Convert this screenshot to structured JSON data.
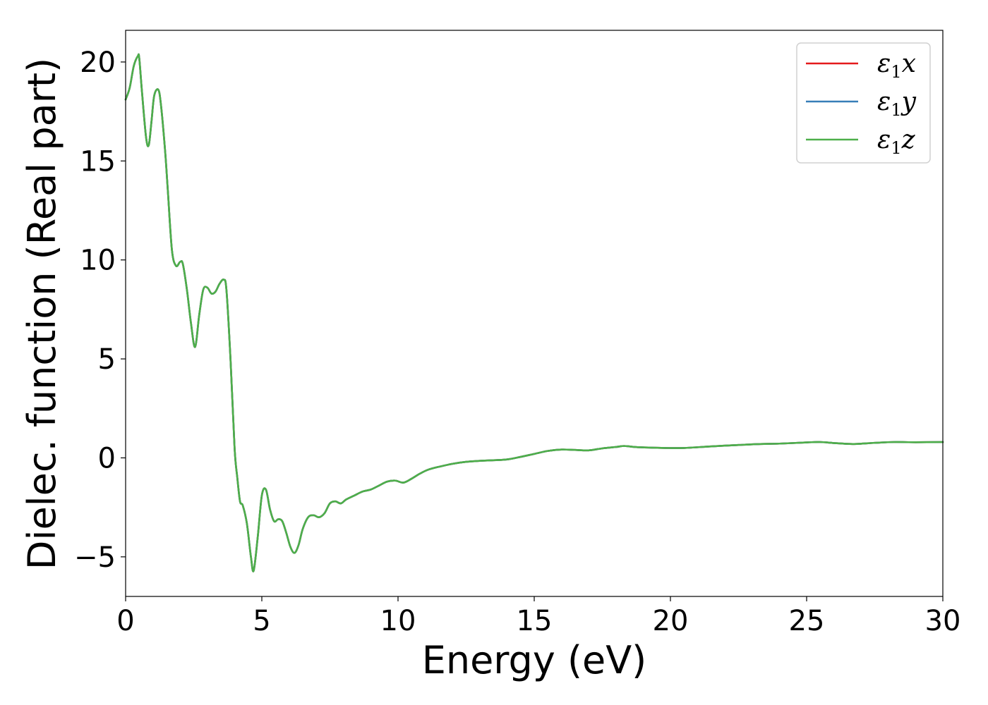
{
  "chart_data": {
    "type": "line",
    "xlabel": "Energy (eV)",
    "ylabel": "Dielec. function (Real part)",
    "xlim": [
      0,
      30
    ],
    "ylim": [
      -7,
      21.6
    ],
    "xticks": [
      0,
      5,
      10,
      15,
      20,
      25,
      30
    ],
    "xtick_labels": [
      "0",
      "5",
      "10",
      "15",
      "20",
      "25",
      "30"
    ],
    "yticks": [
      -5,
      0,
      5,
      10,
      15,
      20
    ],
    "ytick_labels": [
      "−5",
      "0",
      "5",
      "10",
      "15",
      "20"
    ],
    "grid": false,
    "legend_position": "top-right",
    "series": [
      {
        "name": "ε₁x",
        "color": "#e41a1c",
        "x": [
          0,
          0.15,
          0.3,
          0.45,
          0.5,
          0.6,
          0.75,
          0.85,
          0.95,
          1.05,
          1.2,
          1.3,
          1.45,
          1.55,
          1.7,
          1.85,
          2.0,
          2.1,
          2.25,
          2.4,
          2.55,
          2.7,
          2.85,
          3.0,
          3.15,
          3.3,
          3.45,
          3.6,
          3.7,
          3.85,
          4.0,
          4.1,
          4.2,
          4.3,
          4.45,
          4.6,
          4.7,
          4.85,
          5.0,
          5.15,
          5.3,
          5.45,
          5.6,
          5.75,
          5.9,
          6.05,
          6.2,
          6.35,
          6.5,
          6.7,
          6.9,
          7.1,
          7.3,
          7.5,
          7.7,
          7.9,
          8.1,
          8.4,
          8.7,
          9.0,
          9.3,
          9.6,
          9.9,
          10.2,
          10.5,
          10.8,
          11.1,
          11.5,
          12.0,
          12.5,
          13.0,
          13.5,
          14.0,
          14.5,
          15.0,
          15.5,
          16.0,
          16.5,
          17.0,
          17.5,
          18.0,
          18.3,
          18.7,
          19.2,
          19.8,
          20.5,
          21.5,
          22.5,
          23.3,
          24.0,
          25.0,
          25.5,
          26.0,
          26.7,
          27.5,
          28.2,
          29.0,
          30.0
        ],
        "values": [
          18.1,
          18.7,
          19.8,
          20.3,
          20.2,
          18.5,
          16.2,
          15.8,
          17.0,
          18.3,
          18.6,
          17.8,
          15.5,
          13.5,
          10.5,
          9.7,
          9.9,
          9.8,
          8.5,
          6.8,
          5.6,
          7.2,
          8.5,
          8.6,
          8.3,
          8.4,
          8.8,
          9.0,
          8.5,
          5.0,
          0.5,
          -1.0,
          -2.2,
          -2.4,
          -3.3,
          -5.0,
          -5.7,
          -4.0,
          -1.9,
          -1.6,
          -2.6,
          -3.2,
          -3.1,
          -3.2,
          -3.8,
          -4.5,
          -4.8,
          -4.4,
          -3.6,
          -3.0,
          -2.9,
          -3.0,
          -2.8,
          -2.3,
          -2.2,
          -2.3,
          -2.1,
          -1.9,
          -1.7,
          -1.6,
          -1.4,
          -1.2,
          -1.15,
          -1.25,
          -1.05,
          -0.8,
          -0.6,
          -0.45,
          -0.3,
          -0.2,
          -0.15,
          -0.12,
          -0.08,
          0.05,
          0.2,
          0.35,
          0.42,
          0.4,
          0.38,
          0.48,
          0.55,
          0.6,
          0.55,
          0.52,
          0.5,
          0.5,
          0.58,
          0.65,
          0.7,
          0.72,
          0.78,
          0.8,
          0.75,
          0.7,
          0.76,
          0.8,
          0.79,
          0.8
        ]
      },
      {
        "name": "ε₁y",
        "color": "#377eb8",
        "x": [
          0,
          0.15,
          0.3,
          0.45,
          0.5,
          0.6,
          0.75,
          0.85,
          0.95,
          1.05,
          1.2,
          1.3,
          1.45,
          1.55,
          1.7,
          1.85,
          2.0,
          2.1,
          2.25,
          2.4,
          2.55,
          2.7,
          2.85,
          3.0,
          3.15,
          3.3,
          3.45,
          3.6,
          3.7,
          3.85,
          4.0,
          4.1,
          4.2,
          4.3,
          4.45,
          4.6,
          4.7,
          4.85,
          5.0,
          5.15,
          5.3,
          5.45,
          5.6,
          5.75,
          5.9,
          6.05,
          6.2,
          6.35,
          6.5,
          6.7,
          6.9,
          7.1,
          7.3,
          7.5,
          7.7,
          7.9,
          8.1,
          8.4,
          8.7,
          9.0,
          9.3,
          9.6,
          9.9,
          10.2,
          10.5,
          10.8,
          11.1,
          11.5,
          12.0,
          12.5,
          13.0,
          13.5,
          14.0,
          14.5,
          15.0,
          15.5,
          16.0,
          16.5,
          17.0,
          17.5,
          18.0,
          18.3,
          18.7,
          19.2,
          19.8,
          20.5,
          21.5,
          22.5,
          23.3,
          24.0,
          25.0,
          25.5,
          26.0,
          26.7,
          27.5,
          28.2,
          29.0,
          30.0
        ],
        "values": [
          18.1,
          18.7,
          19.8,
          20.3,
          20.2,
          18.5,
          16.2,
          15.8,
          17.0,
          18.3,
          18.6,
          17.8,
          15.5,
          13.5,
          10.5,
          9.7,
          9.9,
          9.8,
          8.5,
          6.8,
          5.6,
          7.2,
          8.5,
          8.6,
          8.3,
          8.4,
          8.8,
          9.0,
          8.5,
          5.0,
          0.5,
          -1.0,
          -2.2,
          -2.4,
          -3.3,
          -5.0,
          -5.7,
          -4.0,
          -1.9,
          -1.6,
          -2.6,
          -3.2,
          -3.1,
          -3.2,
          -3.8,
          -4.5,
          -4.8,
          -4.4,
          -3.6,
          -3.0,
          -2.9,
          -3.0,
          -2.8,
          -2.3,
          -2.2,
          -2.3,
          -2.1,
          -1.9,
          -1.7,
          -1.6,
          -1.4,
          -1.2,
          -1.15,
          -1.25,
          -1.05,
          -0.8,
          -0.6,
          -0.45,
          -0.3,
          -0.2,
          -0.15,
          -0.12,
          -0.08,
          0.05,
          0.2,
          0.35,
          0.42,
          0.4,
          0.38,
          0.48,
          0.55,
          0.6,
          0.55,
          0.52,
          0.5,
          0.5,
          0.58,
          0.65,
          0.7,
          0.72,
          0.78,
          0.8,
          0.75,
          0.7,
          0.76,
          0.8,
          0.79,
          0.8
        ]
      },
      {
        "name": "ε₁z",
        "color": "#4daf4a",
        "x": [
          0,
          0.15,
          0.3,
          0.45,
          0.5,
          0.6,
          0.75,
          0.85,
          0.95,
          1.05,
          1.2,
          1.3,
          1.45,
          1.55,
          1.7,
          1.85,
          2.0,
          2.1,
          2.25,
          2.4,
          2.55,
          2.7,
          2.85,
          3.0,
          3.15,
          3.3,
          3.45,
          3.6,
          3.7,
          3.85,
          4.0,
          4.1,
          4.2,
          4.3,
          4.45,
          4.6,
          4.7,
          4.85,
          5.0,
          5.15,
          5.3,
          5.45,
          5.6,
          5.75,
          5.9,
          6.05,
          6.2,
          6.35,
          6.5,
          6.7,
          6.9,
          7.1,
          7.3,
          7.5,
          7.7,
          7.9,
          8.1,
          8.4,
          8.7,
          9.0,
          9.3,
          9.6,
          9.9,
          10.2,
          10.5,
          10.8,
          11.1,
          11.5,
          12.0,
          12.5,
          13.0,
          13.5,
          14.0,
          14.5,
          15.0,
          15.5,
          16.0,
          16.5,
          17.0,
          17.5,
          18.0,
          18.3,
          18.7,
          19.2,
          19.8,
          20.5,
          21.5,
          22.5,
          23.3,
          24.0,
          25.0,
          25.5,
          26.0,
          26.7,
          27.5,
          28.2,
          29.0,
          30.0
        ],
        "values": [
          18.1,
          18.7,
          19.8,
          20.3,
          20.2,
          18.5,
          16.2,
          15.8,
          17.0,
          18.3,
          18.6,
          17.8,
          15.5,
          13.5,
          10.5,
          9.7,
          9.9,
          9.8,
          8.5,
          6.8,
          5.6,
          7.2,
          8.5,
          8.6,
          8.3,
          8.4,
          8.8,
          9.0,
          8.5,
          5.0,
          0.5,
          -1.0,
          -2.2,
          -2.4,
          -3.3,
          -5.0,
          -5.7,
          -4.0,
          -1.9,
          -1.6,
          -2.6,
          -3.2,
          -3.1,
          -3.2,
          -3.8,
          -4.5,
          -4.8,
          -4.4,
          -3.6,
          -3.0,
          -2.9,
          -3.0,
          -2.8,
          -2.3,
          -2.2,
          -2.3,
          -2.1,
          -1.9,
          -1.7,
          -1.6,
          -1.4,
          -1.2,
          -1.15,
          -1.25,
          -1.05,
          -0.8,
          -0.6,
          -0.45,
          -0.3,
          -0.2,
          -0.15,
          -0.12,
          -0.08,
          0.05,
          0.2,
          0.35,
          0.42,
          0.4,
          0.38,
          0.48,
          0.55,
          0.6,
          0.55,
          0.52,
          0.5,
          0.5,
          0.58,
          0.65,
          0.7,
          0.72,
          0.78,
          0.8,
          0.75,
          0.7,
          0.76,
          0.8,
          0.79,
          0.8
        ]
      }
    ],
    "legend": [
      {
        "symbol": "ε",
        "sub": "1",
        "suffix": "x",
        "color": "#e41a1c"
      },
      {
        "symbol": "ε",
        "sub": "1",
        "suffix": "y",
        "color": "#377eb8"
      },
      {
        "symbol": "ε",
        "sub": "1",
        "suffix": "z",
        "color": "#4daf4a"
      }
    ]
  }
}
